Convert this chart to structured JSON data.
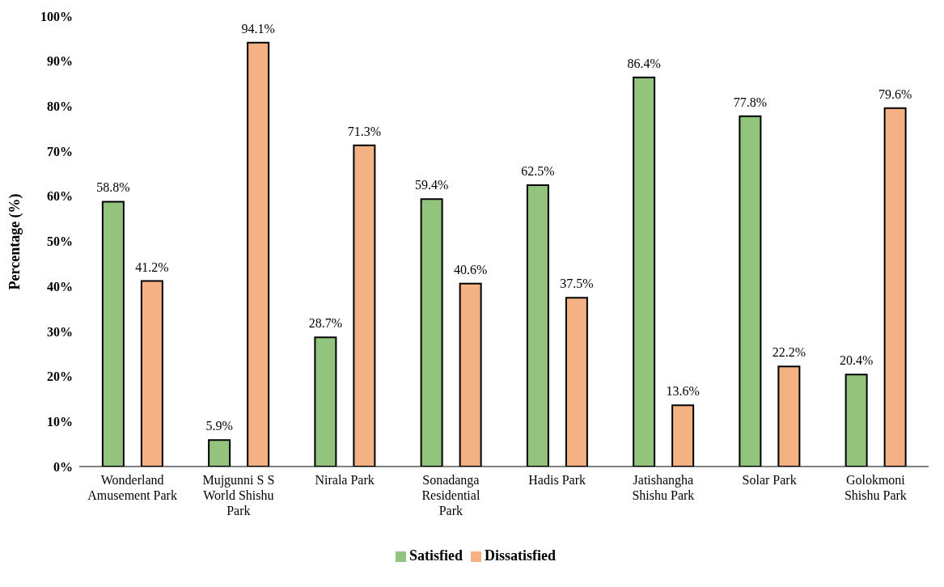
{
  "chart_data": {
    "type": "bar",
    "ylabel": "Percentage (%)",
    "categories": [
      "Wonderland Amusement Park",
      "Mujgunni S S World Shishu Park",
      "Nirala Park",
      "Sonadanga Residential Park",
      "Hadis Park",
      "Jatishangha Shishu Park",
      "Solar Park",
      "Golokmoni Shishu Park"
    ],
    "series": [
      {
        "name": "Satisfied",
        "color": "#93c47d",
        "values": [
          58.8,
          5.9,
          28.7,
          59.4,
          62.5,
          86.4,
          77.8,
          20.4
        ],
        "value_labels": [
          "58.8%",
          "5.9%",
          "28.7%",
          "59.4%",
          "62.5%",
          "86.4%",
          "77.8%",
          "20.4%"
        ]
      },
      {
        "name": "Dissatisfied",
        "color": "#f4b183",
        "values": [
          41.2,
          94.1,
          71.3,
          40.6,
          37.5,
          13.6,
          22.2,
          79.6
        ],
        "value_labels": [
          "41.2%",
          "94.1%",
          "71.3%",
          "40.6%",
          "37.5%",
          "13.6%",
          "22.2%",
          "79.6%"
        ]
      }
    ],
    "ylim": [
      0,
      100
    ],
    "yticks": [
      {
        "value": 0,
        "label": "0%"
      },
      {
        "value": 10,
        "label": "10%"
      },
      {
        "value": 20,
        "label": "20%"
      },
      {
        "value": 30,
        "label": "30%"
      },
      {
        "value": 40,
        "label": "40%"
      },
      {
        "value": 50,
        "label": "50%"
      },
      {
        "value": 60,
        "label": "60%"
      },
      {
        "value": 70,
        "label": "70%"
      },
      {
        "value": 80,
        "label": "80%"
      },
      {
        "value": 90,
        "label": "90%"
      },
      {
        "value": 100,
        "label": "100%"
      }
    ],
    "grid": false,
    "legend": "bottom"
  }
}
